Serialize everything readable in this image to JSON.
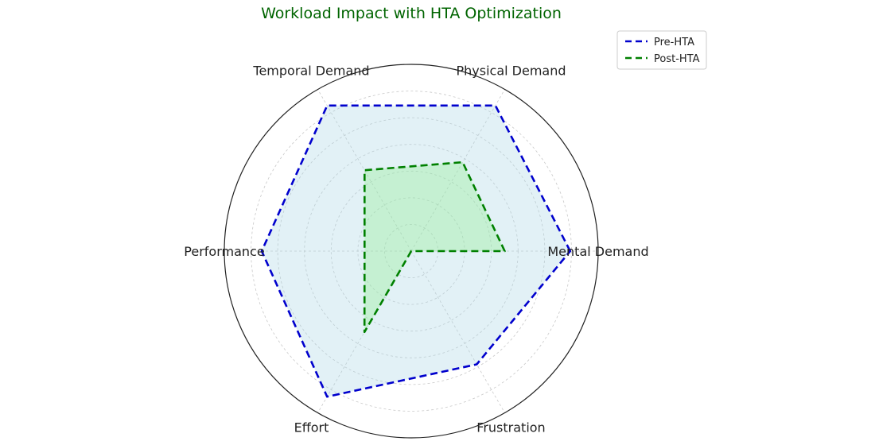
{
  "chart_data": {
    "type": "radar",
    "title": "Workload Impact with HTA Optimization",
    "categories": [
      "Mental Demand",
      "Physical Demand",
      "Temporal Demand",
      "Performance",
      "Effort",
      "Frustration"
    ],
    "rlim": [
      0,
      100
    ],
    "grid": true,
    "legend_position": "top-right",
    "series": [
      {
        "name": "Pre-HTA",
        "values": [
          85,
          90,
          90,
          80,
          90,
          70
        ],
        "color": "#0000cd",
        "fill": "#add8e6"
      },
      {
        "name": "Post-HTA",
        "values": [
          50,
          55,
          50,
          25,
          50,
          0
        ],
        "color": "#008000",
        "fill": "#90ee90"
      }
    ]
  }
}
